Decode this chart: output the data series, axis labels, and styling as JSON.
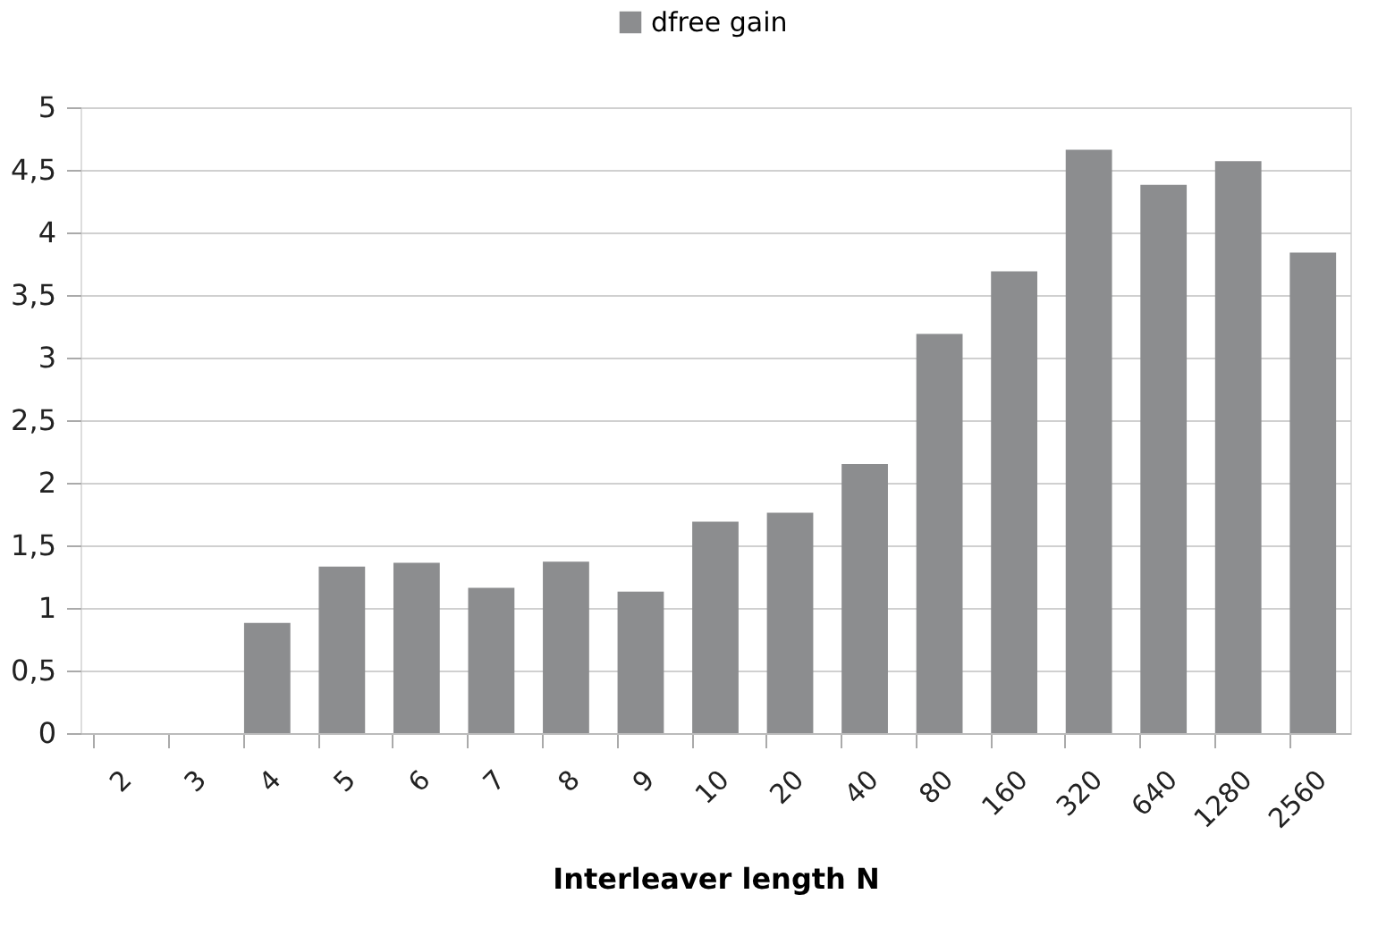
{
  "chart_data": {
    "type": "bar",
    "xlabel": "Interleaver length N",
    "categories": [
      "2",
      "3",
      "4",
      "5",
      "6",
      "7",
      "8",
      "9",
      "10",
      "20",
      "40",
      "80",
      "160",
      "320",
      "640",
      "1280",
      "2560"
    ],
    "series": [
      {
        "name": "dfree gain",
        "color": "#8c8d8f",
        "values": [
          0,
          0,
          0.88,
          1.33,
          1.36,
          1.16,
          1.37,
          1.13,
          1.69,
          1.76,
          2.15,
          3.19,
          3.69,
          4.66,
          4.38,
          4.57,
          3.84
        ]
      }
    ],
    "ylim": [
      0,
      5
    ],
    "yticks": [
      0,
      {
        "value": 0.5,
        "label": "0,5"
      },
      1,
      {
        "value": 1.5,
        "label": "1,5"
      },
      2,
      {
        "value": 2.5,
        "label": "2,5"
      },
      3,
      {
        "value": 3.5,
        "label": "3,5"
      },
      4,
      {
        "value": 4.5,
        "label": "4,5"
      },
      5
    ],
    "grid": "y",
    "legend": "top"
  }
}
